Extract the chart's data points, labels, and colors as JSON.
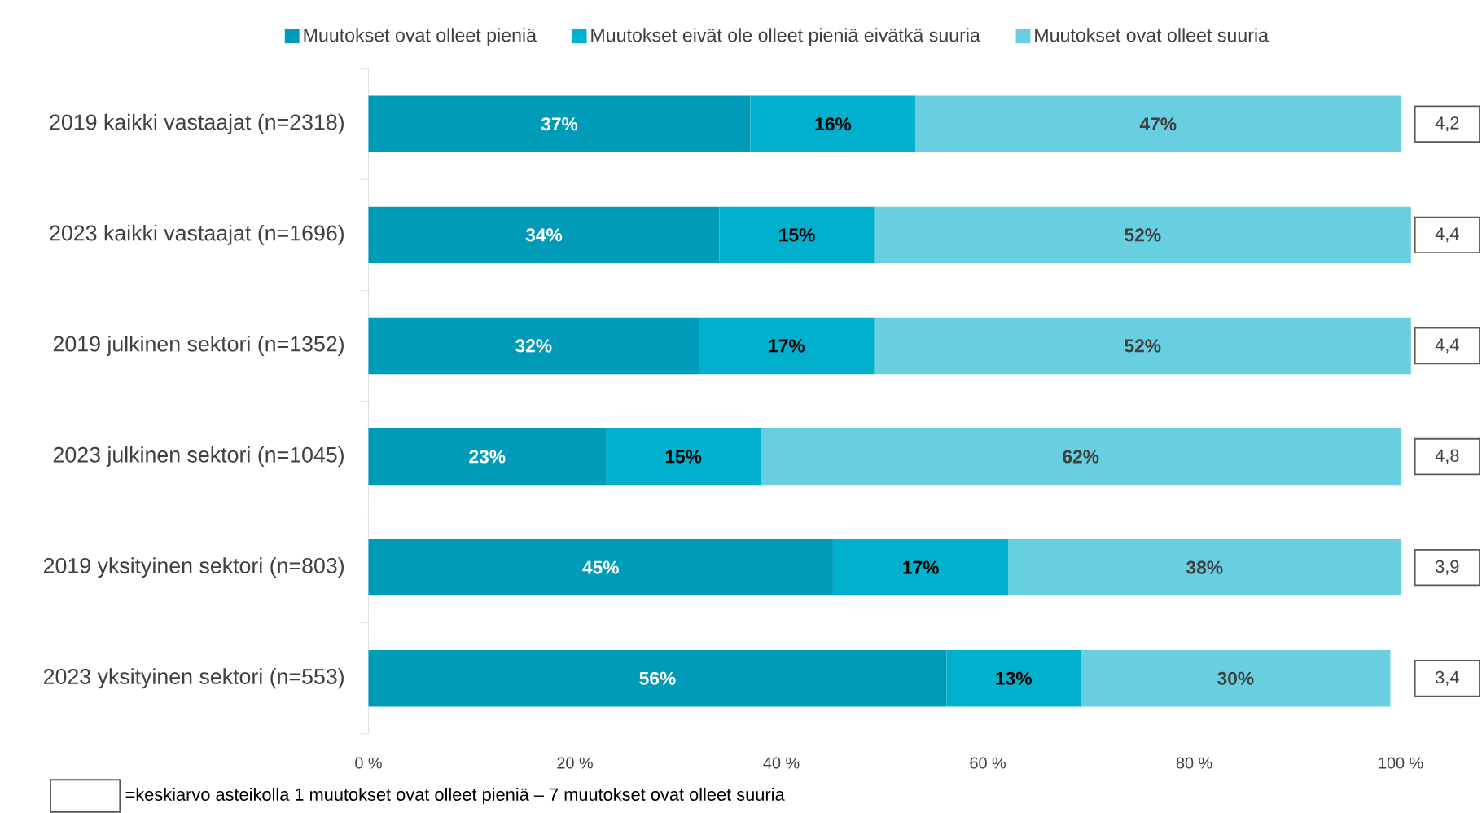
{
  "chart_data": {
    "type": "bar",
    "orientation": "horizontal",
    "stacked": true,
    "categories": [
      "2019 kaikki vastaajat (n=2318)",
      "2023 kaikki vastaajat (n=1696)",
      "2019 julkinen sektori (n=1352)",
      "2023 julkinen sektori (n=1045)",
      "2019 yksityinen sektori (n=803)",
      "2023 yksityinen sektori (n=553)"
    ],
    "series": [
      {
        "name": "Muutokset ovat olleet pieniä",
        "color": "#009bb8",
        "values": [
          37,
          34,
          32,
          23,
          45,
          56
        ],
        "value_labels": [
          "37%",
          "34%",
          "32%",
          "23%",
          "45%",
          "56%"
        ]
      },
      {
        "name": "Muutokset eivät ole olleet pieniä eivätkä suuria",
        "color": "#00b0cc",
        "values": [
          16,
          15,
          17,
          15,
          17,
          13
        ],
        "value_labels": [
          "16%",
          "15%",
          "17%",
          "15%",
          "17%",
          "13%"
        ]
      },
      {
        "name": "Muutokset ovat olleet suuria",
        "color": "#67cfdf",
        "values": [
          47,
          52,
          52,
          62,
          38,
          30
        ],
        "value_labels": [
          "47%",
          "52%",
          "52%",
          "62%",
          "38%",
          "30%"
        ]
      }
    ],
    "xlim": [
      0,
      101
    ],
    "xticks": [
      {
        "value": 0,
        "label": "0 %"
      },
      {
        "value": 20,
        "label": "20 %"
      },
      {
        "value": 40,
        "label": "40 %"
      },
      {
        "value": 60,
        "label": "60 %"
      },
      {
        "value": 80,
        "label": "80 %"
      },
      {
        "value": 100,
        "label": "100 %"
      }
    ],
    "legend": "top",
    "annotations": [
      {
        "text": "4,2",
        "y": "2019 kaikki vastaajat (n=2318)"
      },
      {
        "text": "4,4",
        "y": "2023 kaikki vastaajat (n=1696)"
      },
      {
        "text": "4,4",
        "y": "2019 julkinen sektori (n=1352)"
      },
      {
        "text": "4,8",
        "y": "2023 julkinen sektori (n=1045)"
      },
      {
        "text": "3,9",
        "y": "2019 yksityinen sektori (n=803)"
      },
      {
        "text": "3,4",
        "y": "2023 yksityinen sektori (n=553)"
      },
      "=keskiarvo asteikolla 1 muutokset ovat olleet pieniä – 7 muutokset ovat olleet suuria"
    ]
  }
}
